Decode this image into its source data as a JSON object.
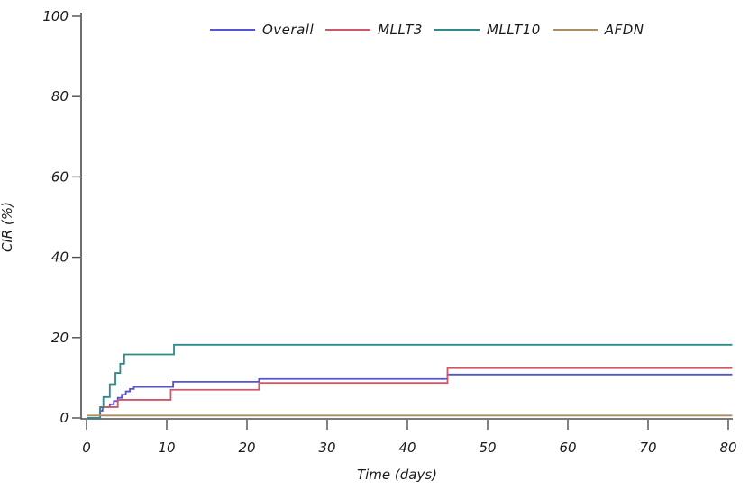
{
  "chart_data": {
    "type": "line",
    "subtype": "step-function-cumulative-incidence",
    "title": "",
    "xlabel": "Time (days)",
    "ylabel": "CIR (%)",
    "xlim": [
      0,
      80
    ],
    "ylim": [
      0,
      100
    ],
    "x_ticks": [
      0,
      10,
      20,
      30,
      40,
      50,
      60,
      70,
      80
    ],
    "y_ticks": [
      0,
      20,
      40,
      60,
      80,
      100
    ],
    "grid": false,
    "legend_position": "top-center",
    "axis_color": "#4d4d4d",
    "series": [
      {
        "name": "Overall",
        "color": "#5253d7",
        "points": [
          [
            0,
            0
          ],
          [
            1.7,
            1.8
          ],
          [
            2.0,
            2.7
          ],
          [
            2.9,
            3.4
          ],
          [
            3.4,
            4.2
          ],
          [
            3.9,
            5.0
          ],
          [
            4.4,
            5.8
          ],
          [
            4.9,
            6.6
          ],
          [
            5.4,
            7.2
          ],
          [
            5.9,
            7.7
          ],
          [
            10.8,
            9.0
          ],
          [
            21.5,
            9.7
          ],
          [
            45,
            10.8
          ],
          [
            80.5,
            10.8
          ]
        ]
      },
      {
        "name": "MLLT3",
        "color": "#cd5868",
        "points": [
          [
            0,
            0
          ],
          [
            1.7,
            2.7
          ],
          [
            3.9,
            4.5
          ],
          [
            10.5,
            7.0
          ],
          [
            21.5,
            8.7
          ],
          [
            45,
            12.4
          ],
          [
            80.5,
            12.4
          ]
        ]
      },
      {
        "name": "MLLT10",
        "color": "#2e8b89",
        "points": [
          [
            0,
            0
          ],
          [
            1.7,
            2.6
          ],
          [
            2.1,
            5.2
          ],
          [
            2.9,
            8.4
          ],
          [
            3.6,
            11.2
          ],
          [
            4.2,
            13.5
          ],
          [
            4.7,
            15.8
          ],
          [
            10.9,
            18.2
          ],
          [
            80.5,
            18.2
          ]
        ]
      },
      {
        "name": "AFDN",
        "color": "#ae8d60",
        "points": [
          [
            0,
            0.6
          ],
          [
            80.5,
            0.6
          ]
        ]
      }
    ]
  }
}
